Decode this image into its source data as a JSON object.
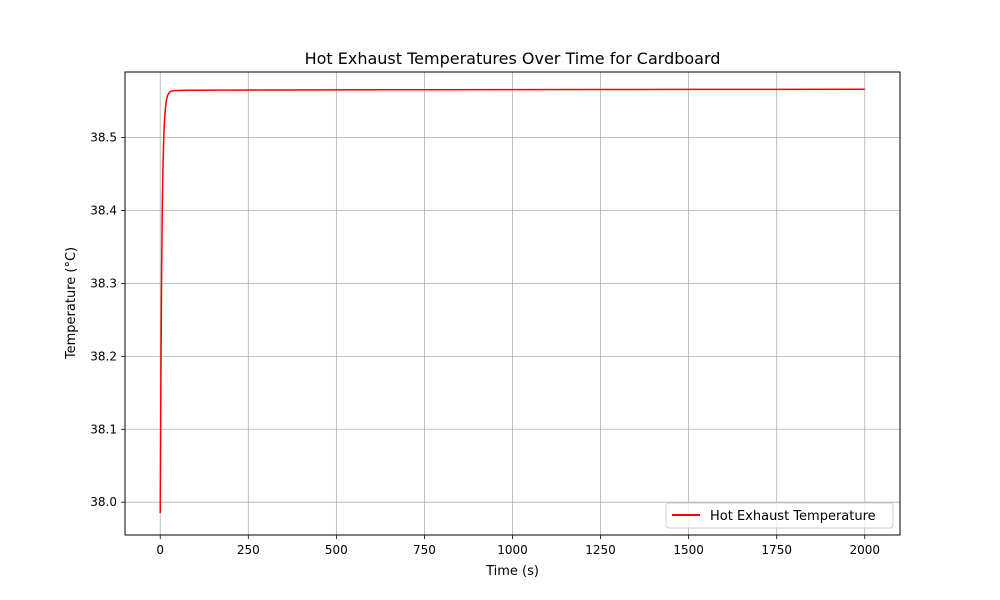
{
  "chart_data": {
    "type": "line",
    "title": "Hot Exhaust Temperatures Over Time for Cardboard",
    "xlabel": "Time (s)",
    "ylabel": "Temperature (°C)",
    "xlim": [
      -100,
      2100
    ],
    "ylim": [
      37.955,
      38.59
    ],
    "x_ticks": [
      0,
      250,
      500,
      750,
      1000,
      1250,
      1500,
      1750,
      2000
    ],
    "x_tick_labels": [
      "0",
      "250",
      "500",
      "750",
      "1000",
      "1250",
      "1500",
      "1750",
      "2000"
    ],
    "y_ticks": [
      38.0,
      38.1,
      38.2,
      38.3,
      38.4,
      38.5
    ],
    "y_tick_labels": [
      "38.0",
      "38.1",
      "38.2",
      "38.3",
      "38.4",
      "38.5"
    ],
    "grid": true,
    "legend_position": "lower-right",
    "series": [
      {
        "name": "Hot Exhaust Temperature",
        "color": "#ff0000",
        "x": [
          0,
          2,
          4,
          6,
          8,
          10,
          12,
          15,
          18,
          22,
          26,
          30,
          35,
          40,
          50,
          60,
          80,
          100,
          150,
          200,
          300,
          500,
          750,
          1000,
          1250,
          1500,
          1750,
          2000
        ],
        "y": [
          37.985,
          38.18,
          38.32,
          38.41,
          38.465,
          38.5,
          38.522,
          38.542,
          38.553,
          38.559,
          38.562,
          38.5635,
          38.5642,
          38.5645,
          38.5647,
          38.5648,
          38.5649,
          38.565,
          38.5651,
          38.5652,
          38.5653,
          38.5655,
          38.5657,
          38.5659,
          38.566,
          38.5661,
          38.5662,
          38.5663
        ]
      }
    ]
  }
}
